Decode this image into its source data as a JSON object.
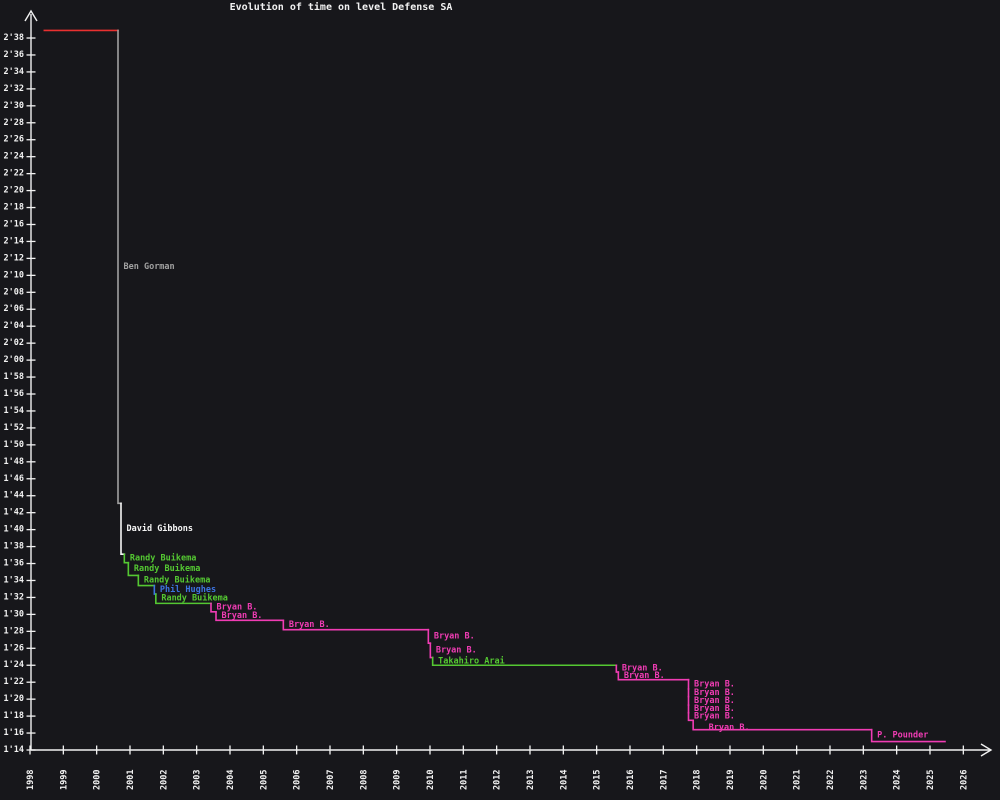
{
  "title": "Evolution of time on level Defense SA",
  "colors": {
    "background": "#17171b",
    "axis": "#f2f2f2",
    "red": "#e93030",
    "gray": "#a0a0a0",
    "white": "#f5f5f5",
    "green": "#54c832",
    "blue": "#3d74e0",
    "magenta": "#f03cb4"
  },
  "chart_data": {
    "type": "line",
    "subtype": "step-record-progression",
    "title": "Evolution of time on level Defense SA",
    "grid": false,
    "legend": false,
    "x_axis": {
      "label": "",
      "ticks": [
        1998,
        1999,
        2000,
        2001,
        2002,
        2003,
        2004,
        2005,
        2006,
        2007,
        2008,
        2009,
        2010,
        2011,
        2012,
        2013,
        2014,
        2015,
        2016,
        2017,
        2018,
        2019,
        2020,
        2021,
        2022,
        2023,
        2024,
        2025,
        2026
      ],
      "tick_label_rotation": -90
    },
    "y_axis": {
      "label": "",
      "unit": "m'ss (level time)",
      "ticks": [
        "1'14",
        "1'16",
        "1'18",
        "1'20",
        "1'22",
        "1'24",
        "1'26",
        "1'28",
        "1'30",
        "1'32",
        "1'34",
        "1'36",
        "1'38",
        "1'40",
        "1'42",
        "1'44",
        "1'46",
        "1'48",
        "1'50",
        "1'52",
        "1'54",
        "1'56",
        "1'58",
        "2'00",
        "2'02",
        "2'04",
        "2'06",
        "2'08",
        "2'10",
        "2'12",
        "2'14",
        "2'16",
        "2'18",
        "2'20",
        "2'22",
        "2'24",
        "2'26",
        "2'28",
        "2'30",
        "2'32",
        "2'34",
        "2'36",
        "2'38"
      ]
    },
    "records": [
      {
        "player": "",
        "label_shown": false,
        "color": "red",
        "time": "2'39",
        "time_s": 158.9,
        "year_start": 1998.43,
        "year_end": 2000.64
      },
      {
        "player": "Ben Gorman",
        "label_shown": true,
        "color": "gray",
        "time": "1'43",
        "time_s": 103.1,
        "year_start": 2000.64,
        "year_end": 2000.73
      },
      {
        "player": "David Gibbons",
        "label_shown": true,
        "color": "white",
        "time": "1'37",
        "time_s": 97.1,
        "year_start": 2000.73,
        "year_end": 2000.83
      },
      {
        "player": "Randy Buikema",
        "label_shown": true,
        "color": "green",
        "time": "1'36",
        "time_s": 96.1,
        "year_start": 2000.83,
        "year_end": 2000.95
      },
      {
        "player": "Randy Buikema",
        "label_shown": true,
        "color": "green",
        "time": "1'35",
        "time_s": 94.6,
        "year_start": 2000.95,
        "year_end": 2001.25
      },
      {
        "player": "Randy Buikema",
        "label_shown": true,
        "color": "green",
        "time": "1'33",
        "time_s": 93.4,
        "year_start": 2001.25,
        "year_end": 2001.73
      },
      {
        "player": "Phil Hughes",
        "label_shown": true,
        "color": "blue",
        "time": "1'32",
        "time_s": 92.4,
        "year_start": 2001.73,
        "year_end": 2001.775
      },
      {
        "player": "Randy Buikema",
        "label_shown": true,
        "color": "green",
        "time": "1'31",
        "time_s": 91.3,
        "year_start": 2001.775,
        "year_end": 2003.43
      },
      {
        "player": "Bryan B.",
        "label_shown": true,
        "color": "magenta",
        "time": "1'30",
        "time_s": 90.3,
        "year_start": 2003.43,
        "year_end": 2003.58
      },
      {
        "player": "Bryan B.",
        "label_shown": true,
        "color": "magenta",
        "time": "1'29",
        "time_s": 89.3,
        "year_start": 2003.58,
        "year_end": 2005.6
      },
      {
        "player": "Bryan B.",
        "label_shown": true,
        "color": "magenta",
        "time": "1'28",
        "time_s": 88.2,
        "year_start": 2005.6,
        "year_end": 2009.95
      },
      {
        "player": "Bryan B.",
        "label_shown": true,
        "color": "magenta",
        "time": "1'27",
        "time_s": 86.6,
        "year_start": 2009.95,
        "year_end": 2010.01
      },
      {
        "player": "Bryan B.",
        "label_shown": true,
        "color": "magenta",
        "time": "1'25",
        "time_s": 84.9,
        "year_start": 2010.01,
        "year_end": 2010.08
      },
      {
        "player": "Takahiro Arai",
        "label_shown": true,
        "color": "green",
        "time": "1'24",
        "time_s": 84.0,
        "year_start": 2010.08,
        "year_end": 2015.59
      },
      {
        "player": "Bryan B.",
        "label_shown": true,
        "color": "magenta",
        "time": "1'23",
        "time_s": 83.2,
        "year_start": 2015.59,
        "year_end": 2015.65
      },
      {
        "player": "Bryan B.",
        "label_shown": true,
        "color": "magenta",
        "time": "1'22",
        "time_s": 82.3,
        "year_start": 2015.65,
        "year_end": 2017.755
      },
      {
        "player": "Bryan B.",
        "label_shown": true,
        "color": "magenta",
        "time": "1'21",
        "time_s": 81.2,
        "year_start": 2017.755,
        "year_end": 2017.755
      },
      {
        "player": "Bryan B.",
        "label_shown": true,
        "color": "magenta",
        "time": "1'20",
        "time_s": 80.3,
        "year_start": 2017.755,
        "year_end": 2017.755
      },
      {
        "player": "Bryan B.",
        "label_shown": true,
        "color": "magenta",
        "time": "1'19",
        "time_s": 79.3,
        "year_start": 2017.755,
        "year_end": 2017.755
      },
      {
        "player": "Bryan B.",
        "label_shown": true,
        "color": "magenta",
        "time": "1'18",
        "time_s": 78.4,
        "year_start": 2017.755,
        "year_end": 2017.755
      },
      {
        "player": "Bryan B.",
        "label_shown": true,
        "color": "magenta",
        "time": "1'17",
        "time_s": 77.5,
        "year_start": 2017.755,
        "year_end": 2017.895
      },
      {
        "player": "Bryan B.",
        "label_shown": true,
        "color": "magenta",
        "time": "1'16",
        "time_s": 76.4,
        "year_start": 2017.895,
        "year_end": 2023.25,
        "label_dx": 10,
        "label_dy": 3
      },
      {
        "player": "P. Pounder",
        "label_shown": true,
        "color": "magenta",
        "time": "1'15",
        "time_s": 75.0,
        "year_start": 2023.25,
        "year_end": 2025.45
      }
    ]
  }
}
